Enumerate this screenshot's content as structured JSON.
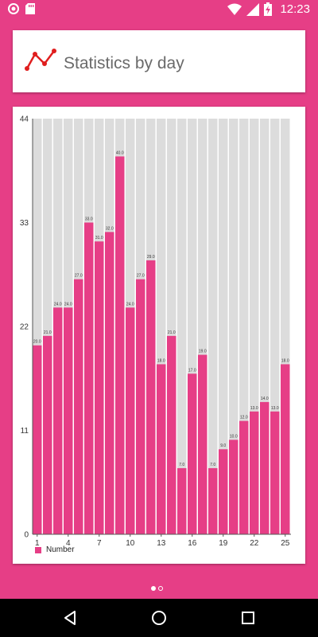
{
  "status_bar": {
    "time": "12:23",
    "left_icons": [
      "circle-notification-icon",
      "sd-card-icon"
    ],
    "right_icons": [
      "wifi-icon",
      "signal-icon",
      "battery-charging-icon"
    ]
  },
  "header": {
    "title": "Statistics by day",
    "icon": "line-chart-icon"
  },
  "chart": {
    "legend_label": "Number",
    "bar_color": "#e63e86",
    "background_bar_color": "#dcdcdc"
  },
  "chart_data": {
    "type": "bar",
    "categories": [
      1,
      2,
      3,
      4,
      5,
      6,
      7,
      8,
      9,
      10,
      11,
      12,
      13,
      14,
      15,
      16,
      17,
      18,
      19,
      20,
      21,
      22,
      23,
      24,
      25
    ],
    "x_tick_labels": [
      "1",
      "4",
      "7",
      "10",
      "13",
      "16",
      "19",
      "22",
      "25"
    ],
    "y_tick_labels": [
      "0",
      "11",
      "22",
      "33",
      "44"
    ],
    "ylim": [
      0,
      44
    ],
    "series": [
      {
        "name": "Number",
        "values": [
          20,
          21,
          24,
          24,
          27,
          33,
          31,
          32,
          40,
          24,
          27,
          29,
          18,
          21,
          7,
          17,
          19,
          7,
          9,
          10,
          12,
          13,
          14,
          13,
          18
        ],
        "value_labels": [
          "20.0",
          "21.0",
          "24.0",
          "24.0",
          "27.0",
          "33.0",
          "31.0",
          "32.0",
          "40.0",
          "24.0",
          "27.0",
          "29.0",
          "18.0",
          "21.0",
          "7.0",
          "17.0",
          "19.0",
          "7.0",
          "9.0",
          "10.0",
          "12.0",
          "13.0",
          "14.0",
          "13.0",
          "18.0"
        ]
      }
    ],
    "xlabel": "",
    "ylabel": "",
    "legend_position": "bottom-left",
    "grid": false
  },
  "pager": {
    "pages": 2,
    "current": 1
  },
  "nav_bar": {
    "buttons": [
      "back-icon",
      "home-icon",
      "recents-icon"
    ]
  }
}
